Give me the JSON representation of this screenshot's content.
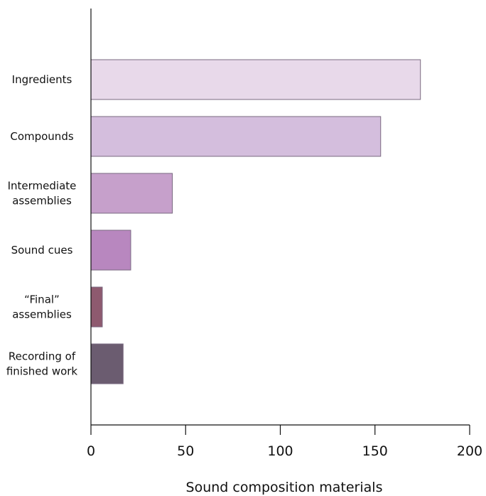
{
  "chart_data": {
    "type": "bar",
    "orientation": "horizontal",
    "title": "",
    "xlabel": "Sound composition materials",
    "ylabel": "",
    "xlim": [
      0,
      200
    ],
    "xticks": [
      0,
      50,
      100,
      150,
      200
    ],
    "grid": false,
    "legend": "none",
    "categories": [
      [
        "Ingredients"
      ],
      [
        "Compounds"
      ],
      [
        "Intermediate",
        "assemblies"
      ],
      [
        "Sound cues"
      ],
      [
        "“Final”",
        "assemblies"
      ],
      [
        "Recording of",
        "finished work"
      ]
    ],
    "values": [
      174,
      153,
      43,
      21,
      6,
      17
    ],
    "colors": [
      "#e8d9ea",
      "#d4bedd",
      "#c6a0cb",
      "#b887bf",
      "#8e5a6f",
      "#6b5c70"
    ]
  }
}
